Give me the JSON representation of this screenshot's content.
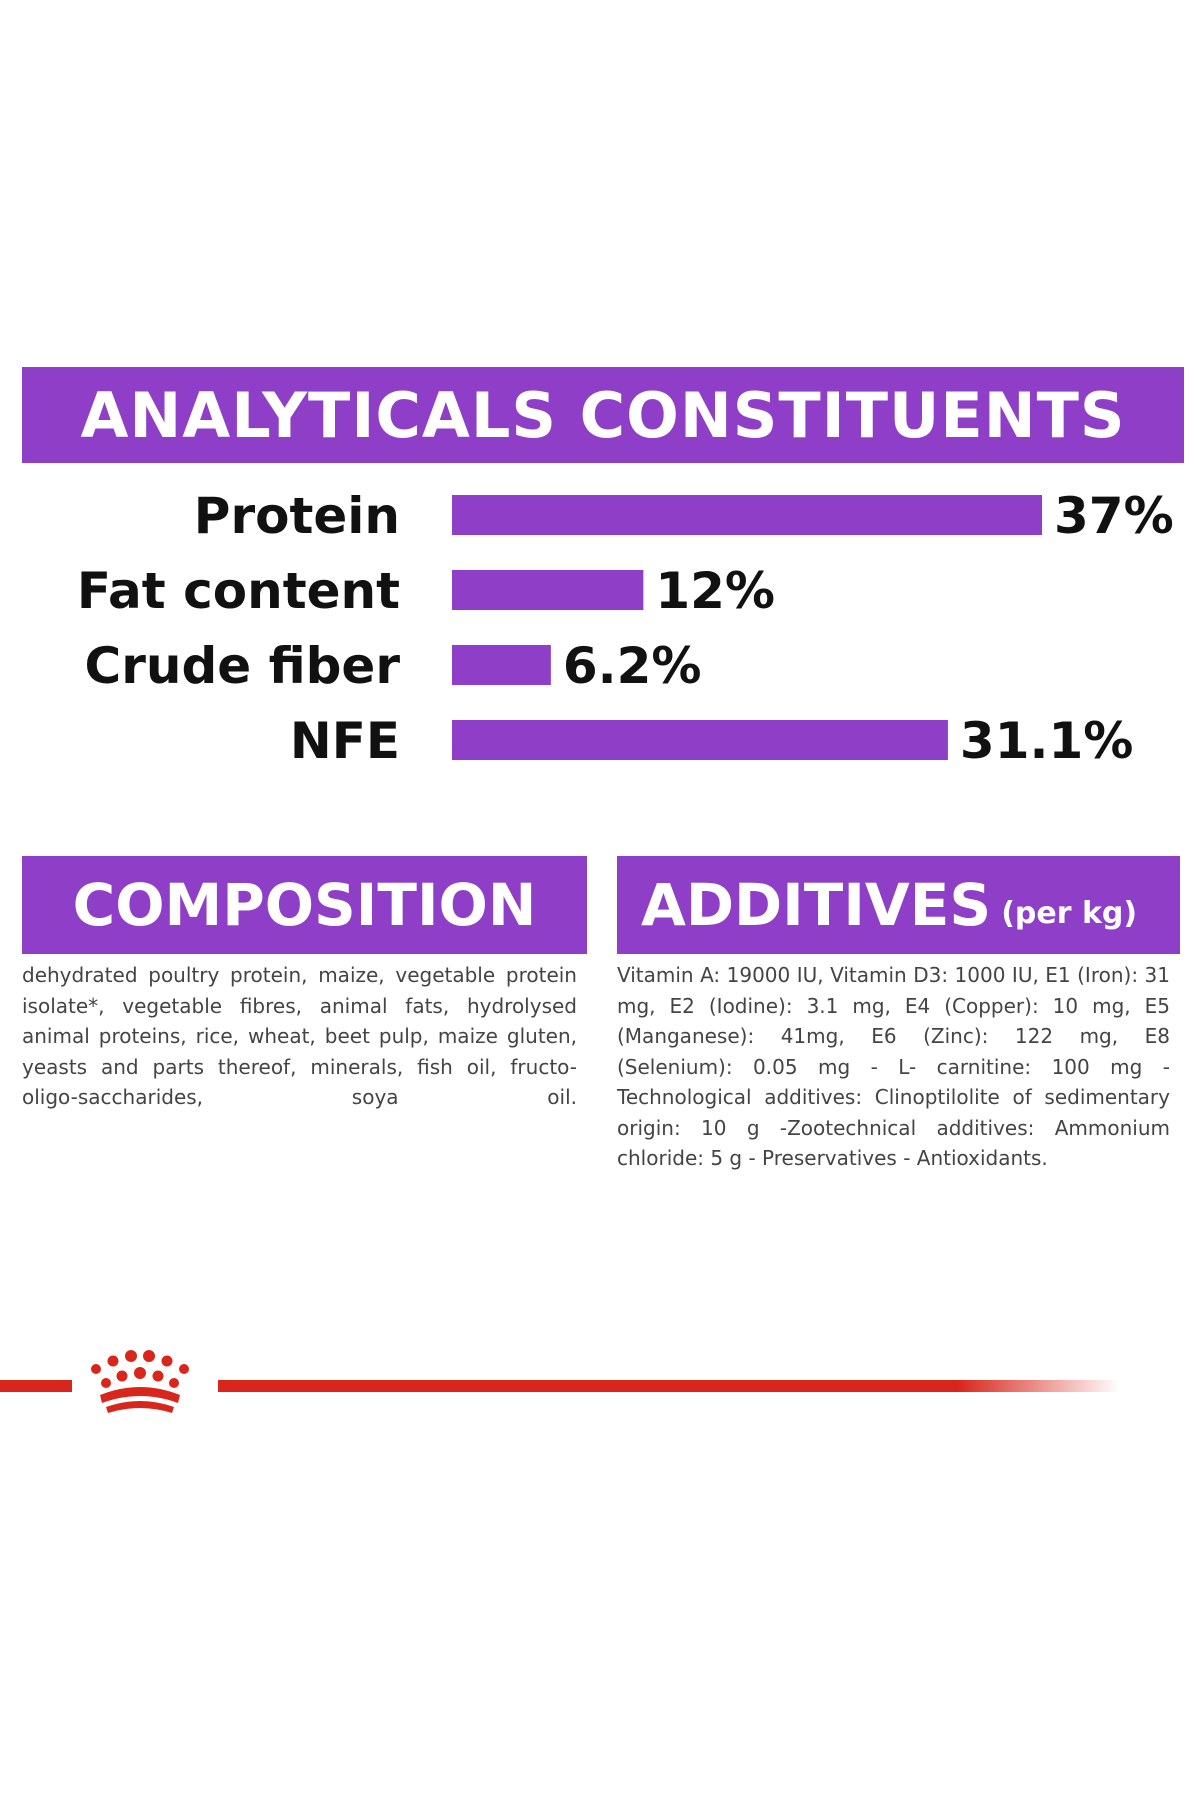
{
  "analytics": {
    "title": "ANALYTICALS CONSTITUENTS"
  },
  "chart_data": {
    "type": "bar",
    "orientation": "horizontal",
    "categories": [
      "Protein",
      "Fat content",
      "Crude fiber",
      "NFE"
    ],
    "values": [
      37,
      12,
      6.2,
      31.1
    ],
    "value_labels": [
      "37%",
      "12%",
      "6.2%",
      "31.1%"
    ],
    "unit": "%",
    "xlim": [
      0,
      37
    ],
    "grid": false,
    "color": "#8f3fc7"
  },
  "composition": {
    "title": "COMPOSITION",
    "text": "dehydrated poultry protein, maize, vegetable protein isolate*, vegetable fibres, animal fats, hydrolysed animal proteins, rice, wheat, beet pulp, maize gluten, yeasts and parts thereof, minerals, fish oil, fructo-oligo-saccharides, soya oil."
  },
  "additives": {
    "title": "ADDITIVES",
    "subtitle": "(per kg)",
    "text": "Vitamin A: 19000 IU, Vitamin D3: 1000 IU, E1 (Iron): 31 mg, E2 (Iodine): 3.1 mg, E4 (Copper): 10 mg, E5 (Manganese): 41mg, E6 (Zinc): 122 mg, E8 (Selenium): 0.05 mg - L- carnitine: 100 mg - Technological additives: Clinoptilolite of sedimentary origin: 10 g -Zootechnical additives: Ammonium chloride: 5 g - Preservatives - Antioxidants."
  },
  "brand": {
    "color": "#d9261c",
    "icon": "crown-logo-icon"
  }
}
